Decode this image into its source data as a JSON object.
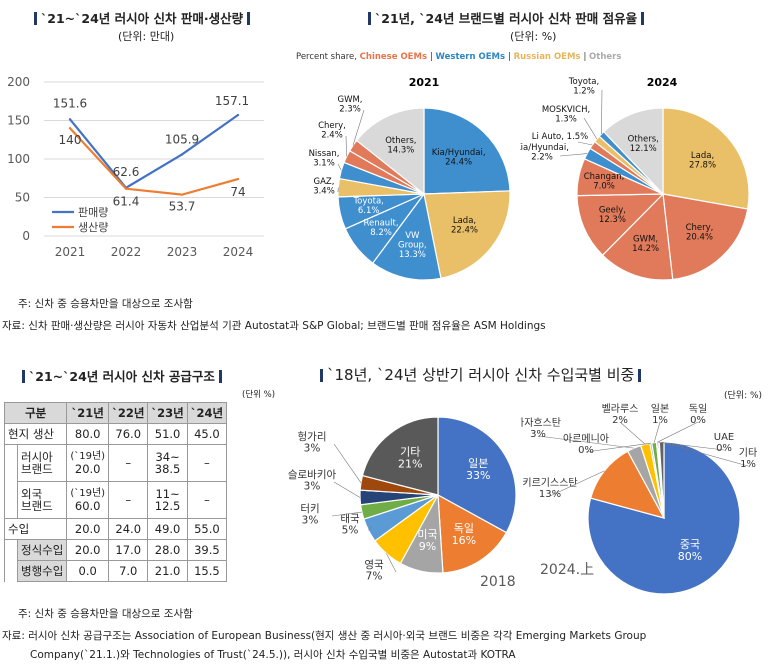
{
  "panel1": {
    "title": "`21~`24년 러시아 신차 판매·생산량",
    "unit": "(단위: 만대)",
    "note": "주: 신차 중 승용차만을 대상으로 조사함"
  },
  "panel2": {
    "title": "`21년, `24년 브랜드별 러시아 신차 판매 점유율",
    "unit": "(단위: %)",
    "legend": [
      {
        "text": "Percent share,",
        "color": "#333333"
      },
      {
        "text": "Chinese OEMs",
        "color": "#e8744a"
      },
      {
        "text": "|",
        "color": "#333333"
      },
      {
        "text": "Western OEMs",
        "color": "#2e86c1"
      },
      {
        "text": "|",
        "color": "#333333"
      },
      {
        "text": "Russian OEMs",
        "color": "#e6b45a"
      },
      {
        "text": "|",
        "color": "#333333"
      },
      {
        "text": "Others",
        "color": "#aaaaaa"
      }
    ]
  },
  "source1": "자료: 신차 판매·생산량은 러시아 자동차 산업분석 기관 Autostat과 S&P Global; 브랜드별 판매 점유율은 ASM Holdings",
  "panel3": {
    "title": "`21~`24년 러시아 신차 공급구조",
    "unit": "(단위 %)",
    "note": "주: 신차 중 승용차만을 대상으로 조사함"
  },
  "panel4": {
    "title": "`18년, `24년 상반기 러시아 신차 수입국별 비중",
    "unit": "(단위: %)"
  },
  "source2_line1": "자료: 러시아 신차 공급구조는 Association of European Business(현지 생산 중 러시아·외국 브랜드 비중은 각각 Emerging Markets Group",
  "source2_line2": "Company(`21.1.)와 Technologies of Trust(`24.5.)), 러시아 신차 수입국별 비중은 Autostat과 KOTRA",
  "chart_data": [
    {
      "type": "line",
      "x": [
        "2021",
        "2022",
        "2023",
        "2024"
      ],
      "series": [
        {
          "name": "판매량",
          "values": [
            151.6,
            62.6,
            105.9,
            157.1
          ],
          "labels": [
            "151.6",
            "62.6",
            "105.9",
            "157.1"
          ],
          "color": "#4472c4"
        },
        {
          "name": "생산량",
          "values": [
            140,
            61.4,
            53.7,
            74
          ],
          "labels": [
            "140",
            "61.4",
            "53.7",
            "74"
          ],
          "color": "#ed7d31"
        }
      ],
      "yticks": [
        "0",
        "50",
        "100",
        "150",
        "200"
      ],
      "ylim": [
        0,
        200
      ],
      "grid": true,
      "legend": "bottom-left"
    },
    {
      "type": "pie",
      "title": "2021",
      "slices": [
        {
          "label": "Kia/Hyundai,",
          "value_label": "24.4%",
          "value": 24.4,
          "color": "#3f8fcf"
        },
        {
          "label": "Lada,",
          "value_label": "22.4%",
          "value": 22.4,
          "color": "#e9bf67"
        },
        {
          "label": "VW Group,",
          "value_label": "13.3%",
          "value": 13.3,
          "color": "#3f8fcf"
        },
        {
          "label": "Renault,",
          "value_label": "8.2%",
          "value": 8.2,
          "color": "#3f8fcf"
        },
        {
          "label": "Toyota,",
          "value_label": "6.1%",
          "value": 6.1,
          "color": "#3f8fcf"
        },
        {
          "label": "GAZ,",
          "value_label": "3.4%",
          "value": 3.4,
          "color": "#e9bf67"
        },
        {
          "label": "Nissan,",
          "value_label": "3.1%",
          "value": 3.1,
          "color": "#3f8fcf"
        },
        {
          "label": "Chery,",
          "value_label": "2.4%",
          "value": 2.4,
          "color": "#e07a5a"
        },
        {
          "label": "GWM,",
          "value_label": "2.3%",
          "value": 2.3,
          "color": "#e07a5a"
        },
        {
          "label": "Others,",
          "value_label": "14.3%",
          "value": 14.3,
          "color": "#d9d9d9"
        }
      ]
    },
    {
      "type": "pie",
      "title": "2024",
      "slices": [
        {
          "label": "Lada,",
          "value_label": "27.8%",
          "value": 27.8,
          "color": "#e9bf67"
        },
        {
          "label": "Chery,",
          "value_label": "20.4%",
          "value": 20.4,
          "color": "#e07a5a"
        },
        {
          "label": "GWM,",
          "value_label": "14.2%",
          "value": 14.2,
          "color": "#e07a5a"
        },
        {
          "label": "Geely,",
          "value_label": "12.3%",
          "value": 12.3,
          "color": "#e07a5a"
        },
        {
          "label": "Changan,",
          "value_label": "7.0%",
          "value": 7.0,
          "color": "#e07a5a"
        },
        {
          "label": "Kia/Hyundai,",
          "value_label": "2.2%",
          "value": 2.2,
          "color": "#3f8fcf"
        },
        {
          "label": "Li Auto,",
          "value_label": "1.5%",
          "value": 1.5,
          "color": "#e07a5a"
        },
        {
          "label": "MOSKVICH,",
          "value_label": "1.3%",
          "value": 1.3,
          "color": "#e9bf67"
        },
        {
          "label": "Toyota,",
          "value_label": "1.2%",
          "value": 1.2,
          "color": "#3f8fcf"
        },
        {
          "label": "Others,",
          "value_label": "12.1%",
          "value": 12.1,
          "color": "#d9d9d9"
        }
      ]
    },
    {
      "type": "table",
      "headers": [
        "구분",
        "`21년",
        "`22년",
        "`23년",
        "`24년"
      ],
      "rows": [
        {
          "label": "현지 생산",
          "values": [
            "80.0",
            "76.0",
            "51.0",
            "45.0"
          ]
        },
        {
          "label": "러시아 브랜드",
          "values": [
            "(`19년) 20.0",
            "–",
            "34~ 38.5",
            "–"
          ]
        },
        {
          "label": "외국 브랜드",
          "values": [
            "(`19년) 60.0",
            "–",
            "11~ 12.5",
            "–"
          ]
        },
        {
          "label": "수입",
          "values": [
            "20.0",
            "24.0",
            "49.0",
            "55.0"
          ]
        },
        {
          "label": "정식수입",
          "values": [
            "20.0",
            "17.0",
            "28.0",
            "39.5"
          ]
        },
        {
          "label": "병행수입",
          "values": [
            "0.0",
            "7.0",
            "21.0",
            "15.5"
          ]
        }
      ]
    },
    {
      "type": "pie",
      "title": "2018",
      "slices": [
        {
          "label": "일본",
          "value_label": "33%",
          "value": 33,
          "color": "#4472c4"
        },
        {
          "label": "독일",
          "value_label": "16%",
          "value": 16,
          "color": "#ed7d31"
        },
        {
          "label": "미국",
          "value_label": "9%",
          "value": 9,
          "color": "#a5a5a5"
        },
        {
          "label": "영국",
          "value_label": "7%",
          "value": 7,
          "color": "#ffc000"
        },
        {
          "label": "태국",
          "value_label": "5%",
          "value": 5,
          "color": "#5b9bd5"
        },
        {
          "label": "터키",
          "value_label": "3%",
          "value": 3,
          "color": "#70ad47"
        },
        {
          "label": "슬로바키아",
          "value_label": "3%",
          "value": 3,
          "color": "#264478"
        },
        {
          "label": "헝가리",
          "value_label": "3%",
          "value": 3,
          "color": "#9e480e"
        },
        {
          "label": "기타",
          "value_label": "21%",
          "value": 21,
          "color": "#595959"
        }
      ]
    },
    {
      "type": "pie",
      "title": "2024.上",
      "slices": [
        {
          "label": "중국",
          "value_label": "80%",
          "value": 80,
          "color": "#4472c4"
        },
        {
          "label": "키르기스스탄",
          "value_label": "13%",
          "value": 13,
          "color": "#ed7d31"
        },
        {
          "label": "카자흐스탄",
          "value_label": "3%",
          "value": 3,
          "color": "#a5a5a5"
        },
        {
          "label": "벨라루스",
          "value_label": "2%",
          "value": 2,
          "color": "#ffc000"
        },
        {
          "label": "아르메니아",
          "value_label": "0%",
          "value": 0.4,
          "color": "#5b9bd5"
        },
        {
          "label": "일본",
          "value_label": "1%",
          "value": 1,
          "color": "#70ad47"
        },
        {
          "label": "독일",
          "value_label": "0%",
          "value": 0.3,
          "color": "#264478"
        },
        {
          "label": "UAE",
          "value_label": "0%",
          "value": 0.3,
          "color": "#9e480e"
        },
        {
          "label": "기타",
          "value_label": "1%",
          "value": 1,
          "color": "#636363"
        }
      ]
    }
  ]
}
